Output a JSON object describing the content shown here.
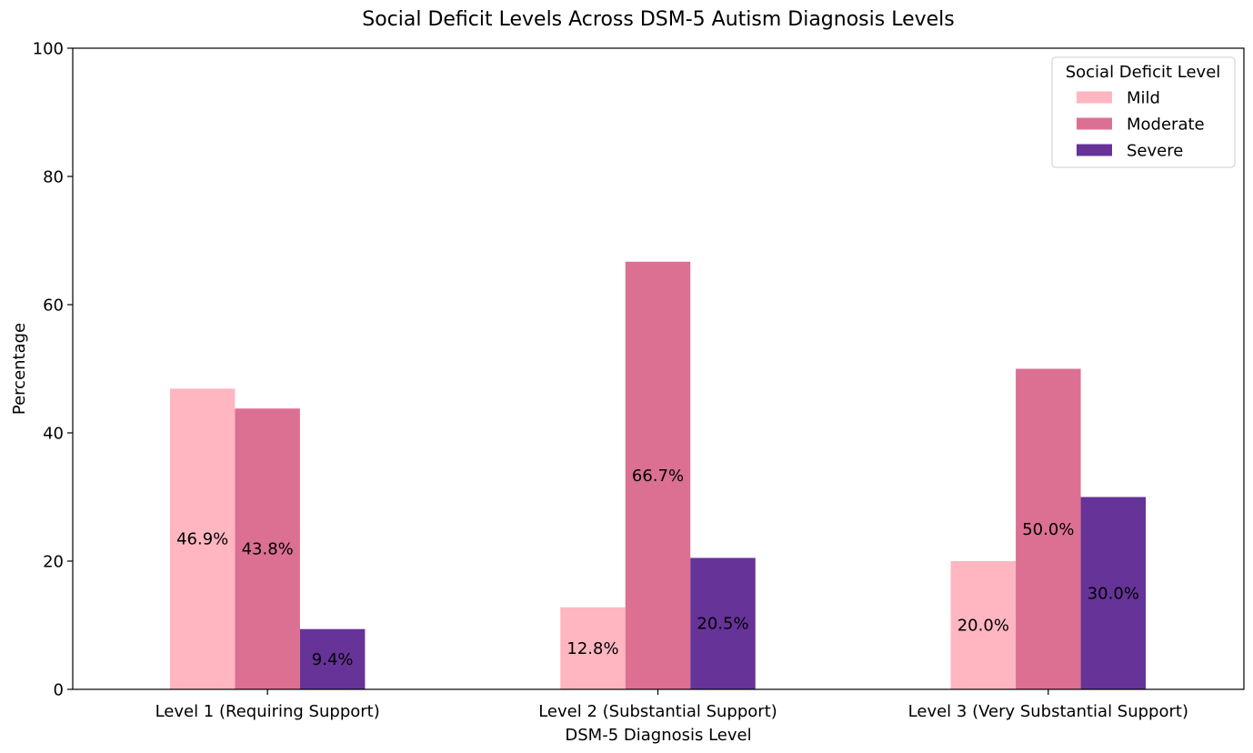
{
  "chart_data": {
    "type": "bar",
    "title": "Social Deficit Levels Across DSM-5 Autism Diagnosis Levels",
    "xlabel": "DSM-5 Diagnosis Level",
    "ylabel": "Percentage",
    "ylim": [
      0,
      100
    ],
    "yticks": [
      "0",
      "20",
      "40",
      "60",
      "80",
      "100"
    ],
    "categories": [
      "Level 1 (Requiring Support)",
      "Level 2 (Substantial Support)",
      "Level 3 (Very Substantial Support)"
    ],
    "legend": {
      "title": "Social Deficit Level",
      "position": "top-right"
    },
    "series": [
      {
        "name": "Mild",
        "color": "#ffb6c1",
        "values": [
          46.9,
          12.8,
          20.0
        ],
        "labels": [
          "46.9%",
          "12.8%",
          "20.0%"
        ]
      },
      {
        "name": "Moderate",
        "color": "#db7093",
        "values": [
          43.8,
          66.7,
          50.0
        ],
        "labels": [
          "43.8%",
          "66.7%",
          "50.0%"
        ]
      },
      {
        "name": "Severe",
        "color": "#663399",
        "values": [
          9.4,
          20.5,
          30.0
        ],
        "labels": [
          "9.4%",
          "20.5%",
          "30.0%"
        ]
      }
    ],
    "grid": false
  }
}
